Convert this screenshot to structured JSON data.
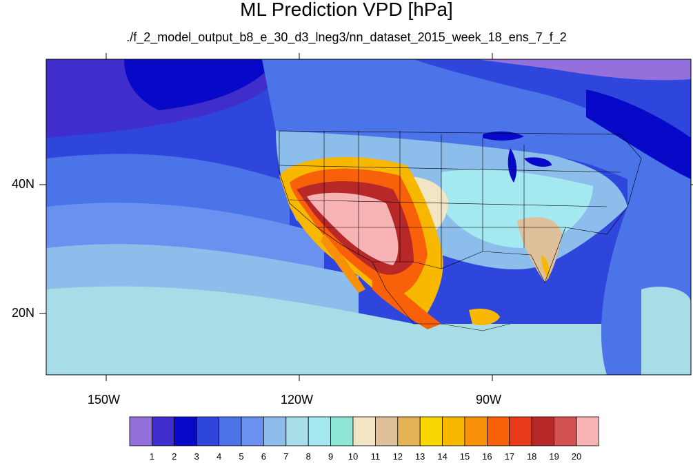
{
  "title": "ML Prediction VPD [hPa]",
  "subtitle": "./f_2_model_output_b8_e_30_d3_lneg3/nn_dataset_2015_week_18_ens_7_f_2",
  "axes": {
    "lat_labels": [
      "40N",
      "20N"
    ],
    "lon_labels": [
      "150W",
      "120W",
      "90W"
    ]
  },
  "colorbar": {
    "labels": [
      "1",
      "2",
      "3",
      "4",
      "5",
      "6",
      "7",
      "8",
      "9",
      "10",
      "11",
      "12",
      "13",
      "14",
      "15",
      "16",
      "17",
      "18",
      "19",
      "20"
    ],
    "colors": [
      "#9370DB",
      "#3F2ECB",
      "#0808C8",
      "#2E46DC",
      "#4A74E8",
      "#6A90F0",
      "#8DBDEB",
      "#A8DCE6",
      "#A4E8F0",
      "#90E6D4",
      "#F2E5C4",
      "#DEC09A",
      "#E4B556",
      "#F8D800",
      "#F9B800",
      "#F8900A",
      "#F8600A",
      "#E83A1C",
      "#B82828",
      "#D25252",
      "#F8B4B4"
    ]
  }
}
